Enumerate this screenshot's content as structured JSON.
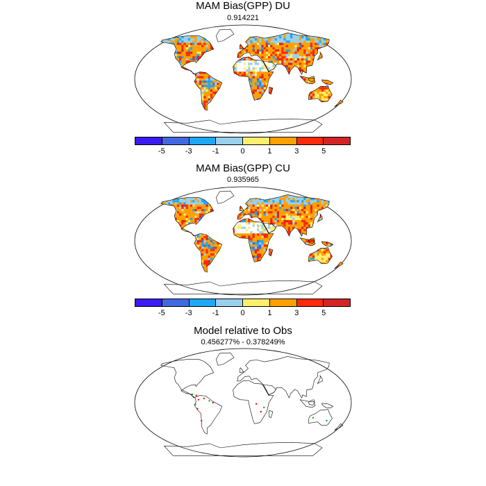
{
  "panels": [
    {
      "title": "MAM Bias(GPP) DU",
      "subtitle": "0.914221"
    },
    {
      "title": "MAM Bias(GPP) CU",
      "subtitle": "0.935965"
    },
    {
      "title": "Model relative to Obs",
      "subtitle": "0.456277% - 0.378249%"
    }
  ],
  "colorbar": {
    "colors": [
      "#3a1bf5",
      "#4169e1",
      "#1ea7f5",
      "#98d0ee",
      "#ffee6e",
      "#ffa000",
      "#ff2a0a",
      "#d42424"
    ],
    "tick_labels": [
      "-5",
      "-3",
      "-1",
      "0",
      "1",
      "3",
      "5"
    ]
  },
  "map_palette": {
    "ocean": "#ffffff",
    "coast": "#000000",
    "dominant": "#ff9a1a"
  }
}
